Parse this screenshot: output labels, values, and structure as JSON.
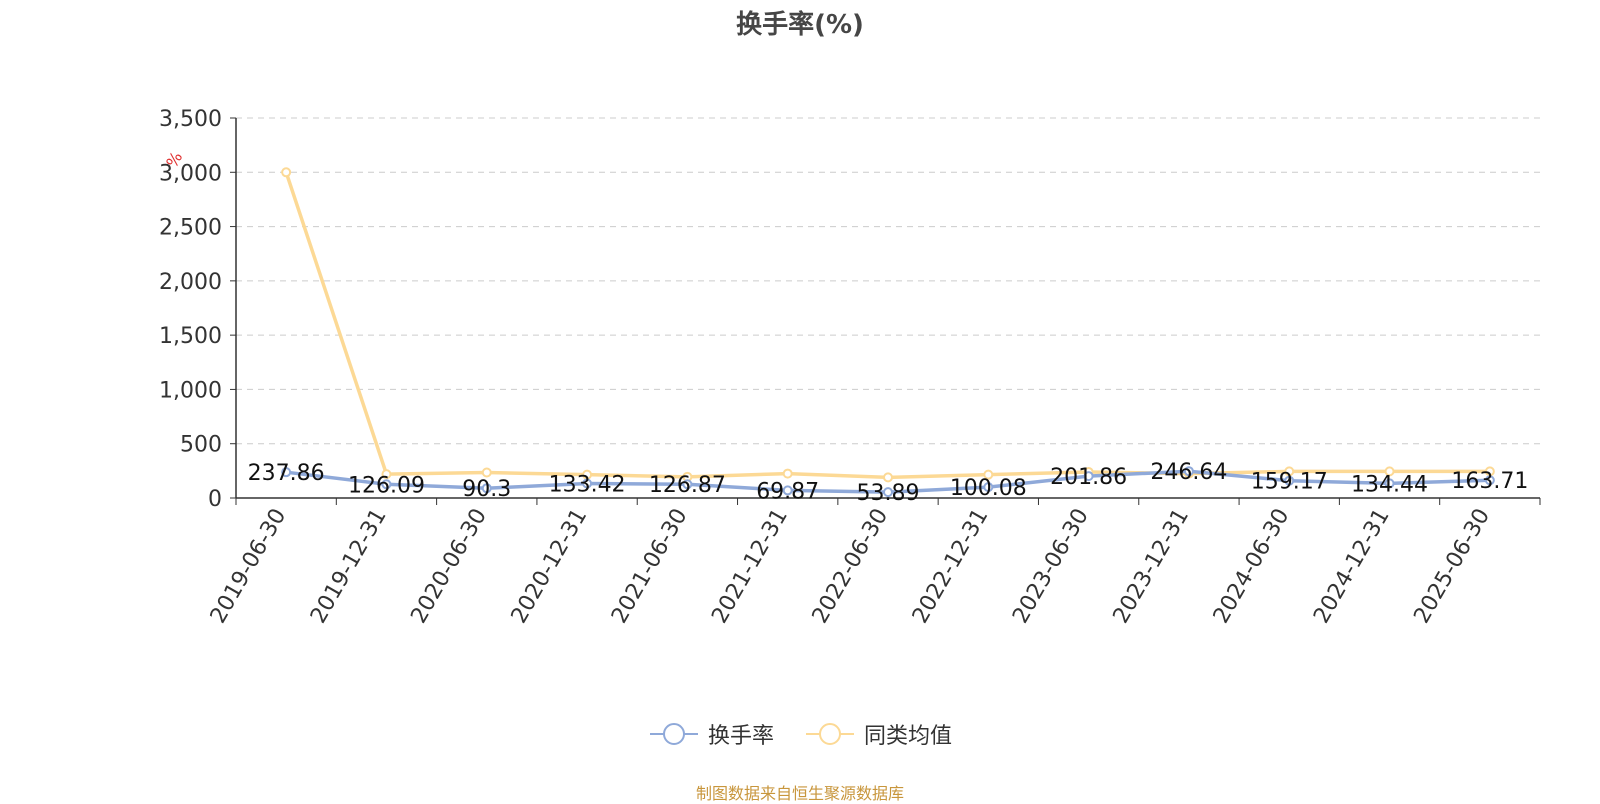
{
  "chart_data": {
    "type": "line",
    "title": "换手率(%)",
    "ylabel": "%",
    "ylim": [
      0,
      3500
    ],
    "yticks": [
      "0",
      "500",
      "1,000",
      "1,500",
      "2,000",
      "2,500",
      "3,000",
      "3,500"
    ],
    "grid": "horizontal dashed",
    "legend": "bottom-center",
    "categories": [
      "2019-06-30",
      "2019-12-31",
      "2020-06-30",
      "2020-12-31",
      "2021-06-30",
      "2021-12-31",
      "2022-06-30",
      "2022-12-31",
      "2023-06-30",
      "2023-12-31",
      "2024-06-30",
      "2024-12-31",
      "2025-06-30"
    ],
    "series": [
      {
        "name": "换手率",
        "color": "#8fa9d9",
        "values": [
          237.86,
          126.09,
          90.3,
          133.42,
          126.87,
          69.87,
          53.89,
          100.08,
          201.86,
          246.64,
          159.17,
          134.44,
          163.71
        ],
        "labels": [
          "237.86",
          "126.09",
          "90.3",
          "133.42",
          "126.87",
          "69.87",
          "53.89",
          "100.08",
          "201.86",
          "246.64",
          "159.17",
          "134.44",
          "163.71"
        ]
      },
      {
        "name": "同类均值",
        "color": "#fcd995",
        "values": [
          3000,
          220,
          235,
          215,
          195,
          225,
          190,
          215,
          240,
          225,
          245,
          245,
          245
        ]
      }
    ]
  },
  "source_note": "制图数据来自恒生聚源数据库"
}
